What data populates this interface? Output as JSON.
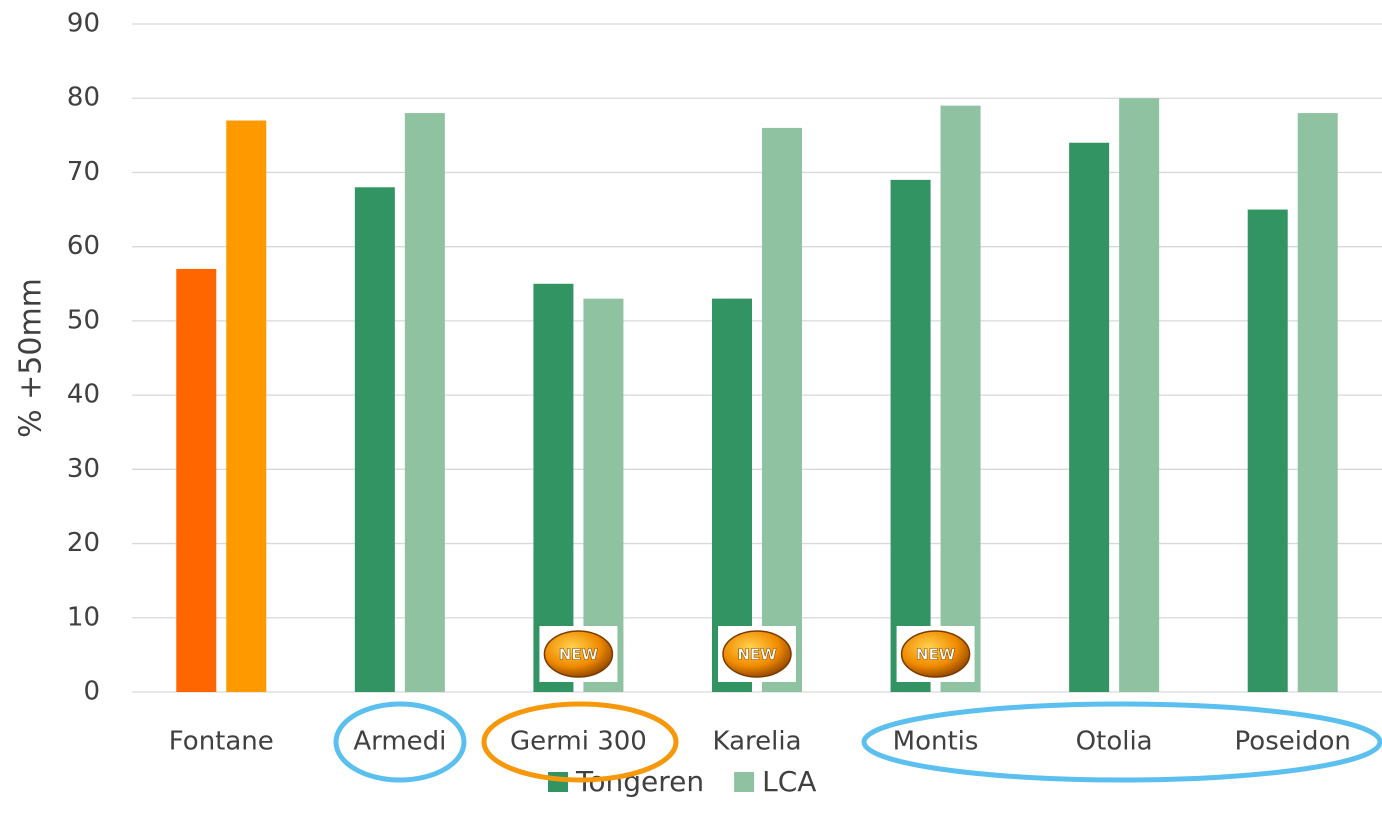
{
  "chart_data": {
    "type": "bar",
    "y_label": "% +50mm",
    "categories": [
      "Fontane",
      "Armedi",
      "Germi 300",
      "Karelia",
      "Montis",
      "Otolia",
      "Poseidon"
    ],
    "series": [
      {
        "name": "Tongeren",
        "color": "#339463",
        "values": [
          57,
          68,
          55,
          53,
          69,
          74,
          65
        ],
        "colors": [
          "#ff6600",
          "#339463",
          "#339463",
          "#339463",
          "#339463",
          "#339463",
          "#339463"
        ]
      },
      {
        "name": "LCA",
        "color": "#8fc2a0",
        "values": [
          77,
          78,
          53,
          76,
          79,
          80,
          78
        ],
        "colors": [
          "#ff9900",
          "#8fc2a0",
          "#8fc2a0",
          "#8fc2a0",
          "#8fc2a0",
          "#8fc2a0",
          "#8fc2a0"
        ]
      }
    ],
    "ylim": [
      0,
      90
    ],
    "yticks": [
      0,
      10,
      20,
      30,
      40,
      50,
      60,
      70,
      80,
      90
    ],
    "grid": true,
    "legend": "bottom",
    "annotations": [
      {
        "text": "NEW",
        "category": "Germi 300"
      },
      {
        "text": "NEW",
        "category": "Karelia"
      },
      {
        "text": "NEW",
        "category": "Montis"
      }
    ]
  }
}
